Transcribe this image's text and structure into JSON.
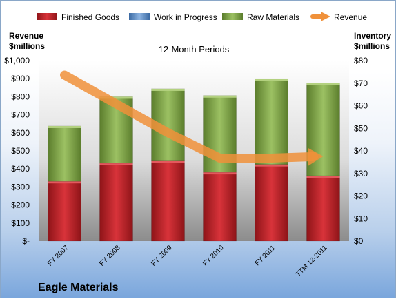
{
  "chart_data": {
    "type": "bar",
    "stacked": true,
    "title": "12-Month Periods",
    "footer": "Eagle Materials",
    "categories": [
      "FY 2007",
      "FY 2008",
      "FY 2009",
      "FY 2010",
      "FY 2011",
      "TTM 12-2011"
    ],
    "series": [
      {
        "name": "Finished Goods",
        "axis": "right",
        "color": "#c0272d",
        "values": [
          26.5,
          34.5,
          35.5,
          30.5,
          34,
          29
        ]
      },
      {
        "name": "Work in Progress",
        "axis": "right",
        "color": "#4f81bd",
        "values": [
          0,
          0,
          0,
          0,
          0,
          0
        ]
      },
      {
        "name": "Raw Materials",
        "axis": "right",
        "color": "#8db255",
        "values": [
          24.5,
          29.5,
          32,
          34,
          38,
          41
        ]
      },
      {
        "name": "Revenue",
        "axis": "left",
        "type": "line",
        "color": "#f0913a",
        "values": [
          920,
          760,
          600,
          460,
          460,
          470
        ]
      }
    ],
    "y_left": {
      "label_lines": [
        "Revenue",
        "$millions"
      ],
      "ylim": [
        0,
        1000
      ],
      "ticks": [
        "$-",
        "$100",
        "$200",
        "$300",
        "$400",
        "$500",
        "$600",
        "$700",
        "$800",
        "$900",
        "$1,000"
      ]
    },
    "y_right": {
      "label_lines": [
        "Inventory",
        "$millions"
      ],
      "ylim": [
        0,
        80
      ],
      "ticks": [
        "$0",
        "$10",
        "$20",
        "$30",
        "$40",
        "$50",
        "$60",
        "$70",
        "$80"
      ]
    },
    "legend_position": "top",
    "grid": false
  }
}
